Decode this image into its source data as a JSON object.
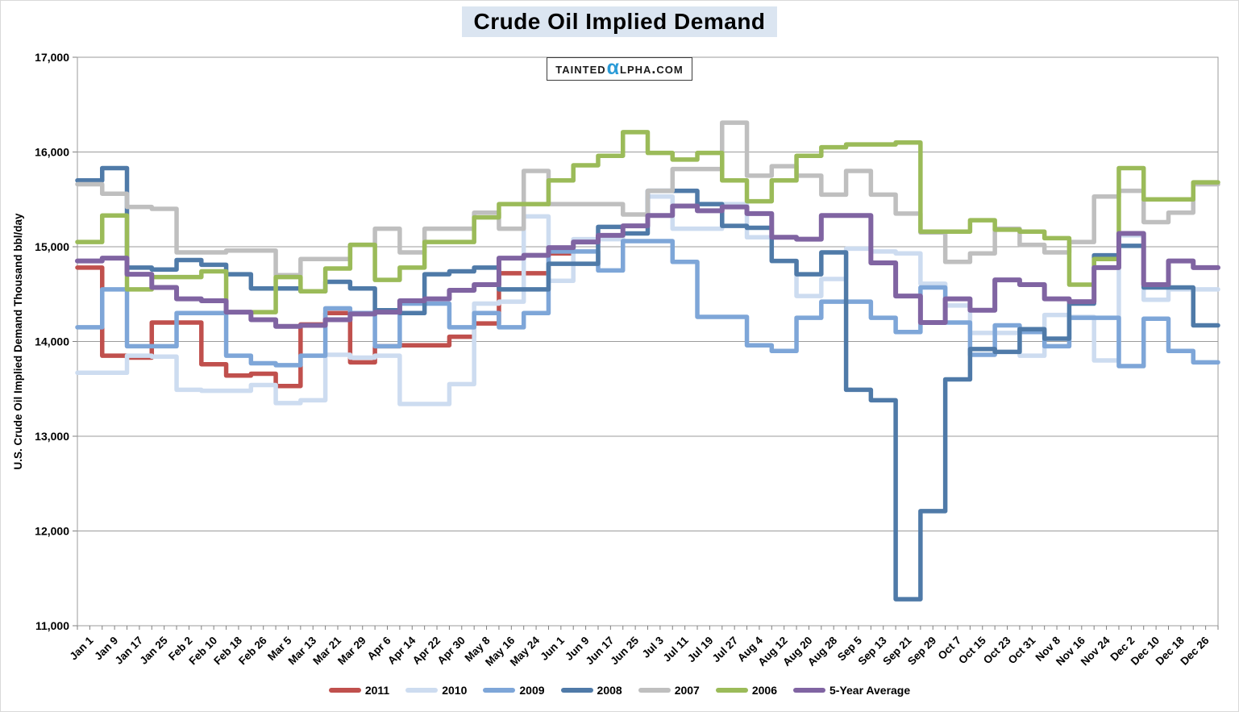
{
  "title": "Crude Oil Implied Demand",
  "watermark": {
    "pre": "Tainted",
    "alpha": "α",
    "post": "lpha.com"
  },
  "y_axis_title": "U.S. Crude Oil Implied Demand Thousand bbl/day",
  "chart_data": {
    "type": "line",
    "step": true,
    "title": "Crude Oil Implied Demand",
    "xlabel": "",
    "ylabel": "U.S. Crude Oil Implied Demand Thousand bbl/day",
    "ylim": [
      11000,
      17000
    ],
    "ytick_step": 1000,
    "grid": true,
    "legend_position": "bottom",
    "categories": [
      "Jan 1",
      "Jan 9",
      "Jan 17",
      "Jan 25",
      "Feb 2",
      "Feb 10",
      "Feb 18",
      "Feb 26",
      "Mar 5",
      "Mar 13",
      "Mar 21",
      "Mar 29",
      "Apr 6",
      "Apr 14",
      "Apr 22",
      "Apr 30",
      "May 8",
      "May 16",
      "May 24",
      "Jun 1",
      "Jun 9",
      "Jun 17",
      "Jun 25",
      "Jul 3",
      "Jul 11",
      "Jul 19",
      "Jul 27",
      "Aug 4",
      "Aug 12",
      "Aug 20",
      "Aug 28",
      "Sep 5",
      "Sep 13",
      "Sep 21",
      "Sep 29",
      "Oct 7",
      "Oct 15",
      "Oct 23",
      "Oct 31",
      "Nov 8",
      "Nov 16",
      "Nov 24",
      "Dec 2",
      "Dec 10",
      "Dec 18",
      "Dec 26"
    ],
    "series": [
      {
        "name": "2011",
        "color": "#C0504D",
        "values": [
          14780,
          13850,
          13830,
          14200,
          14200,
          13760,
          13640,
          13660,
          13530,
          14180,
          14300,
          13780,
          13950,
          13960,
          13960,
          14050,
          14190,
          14720,
          14720,
          14930
        ]
      },
      {
        "name": "2010",
        "color": "#CDDCF0",
        "values": [
          13670,
          13670,
          13850,
          13840,
          13490,
          13480,
          13480,
          13540,
          13350,
          13380,
          13860,
          13830,
          13850,
          13340,
          13340,
          13550,
          14400,
          14420,
          15320,
          14640,
          15080,
          15080,
          15220,
          15530,
          15190,
          15190,
          15450,
          15100,
          14850,
          14480,
          14660,
          14980,
          14950,
          14930,
          14610,
          14380,
          14090,
          14090,
          13850,
          14280,
          14260,
          13800,
          15120,
          14440,
          14550,
          14550
        ]
      },
      {
        "name": "2009",
        "color": "#7EA6D8",
        "values": [
          14150,
          14550,
          13950,
          13950,
          14300,
          14300,
          13850,
          13770,
          13750,
          13850,
          14350,
          14300,
          13950,
          14400,
          14400,
          14150,
          14300,
          14150,
          14300,
          14950,
          14950,
          14750,
          15060,
          15060,
          14840,
          14260,
          14260,
          13960,
          13900,
          14250,
          14420,
          14420,
          14250,
          14100,
          14570,
          14200,
          13860,
          14170,
          14100,
          13950,
          14250,
          14250,
          13740,
          14240,
          13900,
          13780
        ]
      },
      {
        "name": "2008",
        "color": "#4F7AA8",
        "values": [
          15700,
          15830,
          14780,
          14760,
          14860,
          14810,
          14710,
          14560,
          14560,
          14530,
          14630,
          14560,
          14330,
          14300,
          14710,
          14740,
          14780,
          14550,
          14550,
          14820,
          14820,
          15210,
          15140,
          15590,
          15590,
          15450,
          15220,
          15200,
          14850,
          14710,
          14940,
          13490,
          13380,
          11280,
          12210,
          13600,
          13920,
          13890,
          14130,
          14030,
          14400,
          14910,
          15010,
          14570,
          14570,
          14170
        ]
      },
      {
        "name": "2007",
        "color": "#BFBFBF",
        "values": [
          15660,
          15560,
          15420,
          15400,
          14940,
          14940,
          14960,
          14960,
          14700,
          14870,
          14870,
          15020,
          15190,
          14940,
          15190,
          15190,
          15360,
          15190,
          15800,
          15450,
          15450,
          15450,
          15340,
          15590,
          15820,
          15820,
          16310,
          15750,
          15850,
          15750,
          15550,
          15800,
          15550,
          15350,
          15150,
          14840,
          14930,
          15190,
          15020,
          14940,
          15050,
          15530,
          15590,
          15260,
          15360,
          15660
        ]
      },
      {
        "name": "2006",
        "color": "#9BBB59",
        "values": [
          15050,
          15330,
          14550,
          14680,
          14680,
          14740,
          14310,
          14310,
          14680,
          14530,
          14770,
          15020,
          14650,
          14780,
          15050,
          15050,
          15310,
          15450,
          15450,
          15700,
          15860,
          15960,
          16210,
          15990,
          15920,
          15990,
          15700,
          15480,
          15700,
          15960,
          16050,
          16080,
          16080,
          16100,
          15160,
          15160,
          15280,
          15180,
          15160,
          15090,
          14600,
          14870,
          15830,
          15500,
          15500,
          15680
        ]
      },
      {
        "name": "5-Year Average",
        "color": "#8064A2",
        "values": [
          14850,
          14880,
          14710,
          14570,
          14450,
          14430,
          14310,
          14230,
          14160,
          14170,
          14230,
          14290,
          14310,
          14430,
          14450,
          14540,
          14600,
          14880,
          14910,
          14990,
          15050,
          15120,
          15220,
          15330,
          15430,
          15380,
          15420,
          15350,
          15100,
          15080,
          15330,
          15330,
          14830,
          14480,
          14200,
          14450,
          14330,
          14650,
          14600,
          14450,
          14420,
          14780,
          15140,
          14600,
          14850,
          14780
        ]
      }
    ]
  }
}
